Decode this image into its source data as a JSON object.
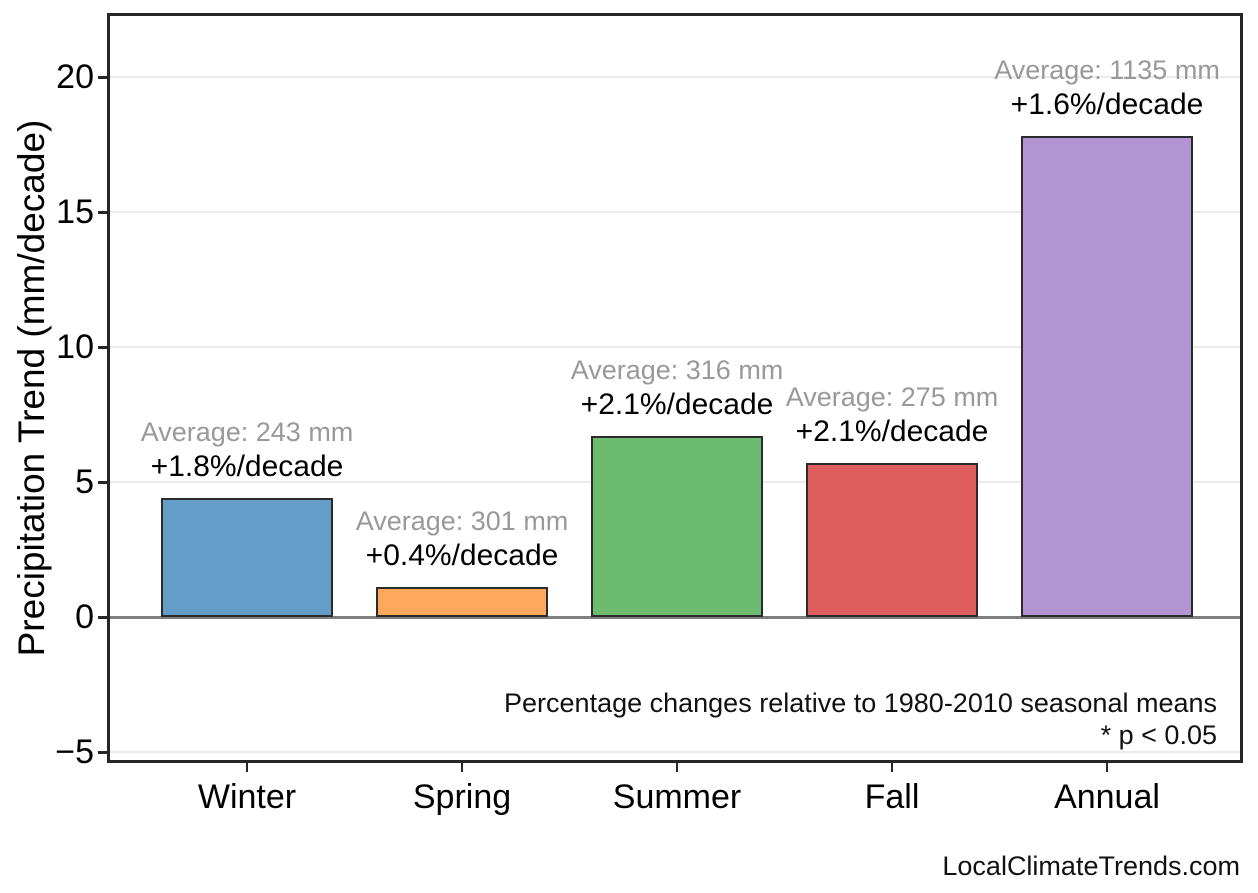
{
  "watermark": "LocalClimateTrends.com",
  "chart_data": {
    "type": "bar",
    "title": "",
    "xlabel": "",
    "ylabel": "Precipitation Trend (mm/decade)",
    "categories": [
      "Winter",
      "Spring",
      "Summer",
      "Fall",
      "Annual"
    ],
    "series": [
      {
        "name": "Precipitation trend (mm/decade)",
        "values": [
          4.4,
          1.1,
          6.7,
          5.7,
          17.8
        ]
      }
    ],
    "bars": [
      {
        "category": "Winter",
        "trend_mm_per_decade": 4.4,
        "average_mm": 243,
        "average_label": "Average: 243 mm",
        "percent_label": "+1.8%/decade",
        "color": "#649EC8"
      },
      {
        "category": "Spring",
        "trend_mm_per_decade": 1.1,
        "average_mm": 301,
        "average_label": "Average: 301 mm",
        "percent_label": "+0.4%/decade",
        "color": "#FCA95E"
      },
      {
        "category": "Summer",
        "trend_mm_per_decade": 6.7,
        "average_mm": 316,
        "average_label": "Average: 316 mm",
        "percent_label": "+2.1%/decade",
        "color": "#6CBB6E"
      },
      {
        "category": "Fall",
        "trend_mm_per_decade": 5.7,
        "average_mm": 275,
        "average_label": "Average: 275 mm",
        "percent_label": "+2.1%/decade",
        "color": "#DE5D5D"
      },
      {
        "category": "Annual",
        "trend_mm_per_decade": 17.8,
        "average_mm": 1135,
        "average_label": "Average: 1135 mm",
        "percent_label": "+1.6%/decade",
        "color": "#B294D3"
      }
    ],
    "ylim": [
      -5.4,
      22.4
    ],
    "yticks": [
      {
        "value": -5,
        "label": "−5"
      },
      {
        "value": 0,
        "label": "0"
      },
      {
        "value": 5,
        "label": "5"
      },
      {
        "value": 10,
        "label": "10"
      },
      {
        "value": 15,
        "label": "15"
      },
      {
        "value": 20,
        "label": "20"
      }
    ],
    "grid": "horizontal-light",
    "legend": "none",
    "colors": {
      "grid": "#EBEBEB",
      "zero_line": "#7F7F7F",
      "bar_edge": "#2B2B2B",
      "average_text": "#999999",
      "percent_text": "#000000",
      "axis": "#262626"
    },
    "footnote_line1": "Percentage changes relative to 1980-2010 seasonal means",
    "footnote_line2": "* p < 0.05"
  }
}
